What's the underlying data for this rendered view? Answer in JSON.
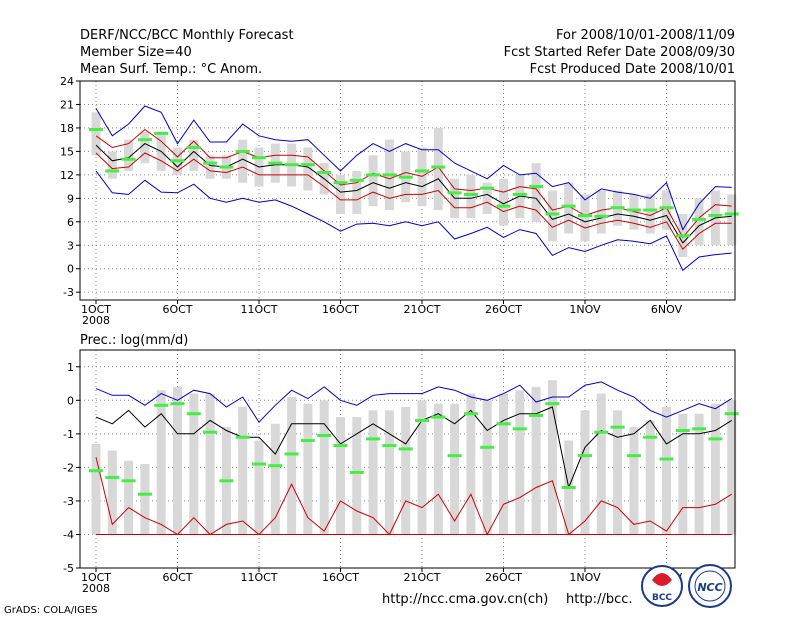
{
  "header": {
    "left": [
      "DERF/NCC/BCC Monthly Forecast",
      "Member Size=40",
      "Mean Surf. Temp.: °C Anom."
    ],
    "right": [
      "For 2008/10/01-2008/11/09",
      "Fcst Started Refer Date 2008/09/30",
      "Fcst Produced Date 2008/10/01"
    ]
  },
  "footer": {
    "grads": "GrADS: COLA/IGES",
    "url1": "http://ncc.cma.gov.cn(ch)",
    "url2": "http://bcc.",
    "logo1": "BCC",
    "logo2": "NCC"
  },
  "colors": {
    "ens": "#d8d8d8",
    "spread": "#0000cc",
    "band": "#cc0000",
    "mean": "#000000",
    "obs": "#44ee44",
    "grid": "#888888"
  },
  "chart_data": [
    {
      "type": "line",
      "title": "Mean Surf. Temp.: °C Anom.",
      "x": [
        1,
        2,
        3,
        4,
        5,
        6,
        7,
        8,
        9,
        10,
        11,
        12,
        13,
        14,
        15,
        16,
        17,
        18,
        19,
        20,
        21,
        22,
        23,
        24,
        25,
        26,
        27,
        28,
        29,
        30,
        31,
        32,
        33,
        34,
        35,
        36,
        37,
        38,
        39,
        40
      ],
      "xticks": [
        {
          "x": 1,
          "label": "1OCT",
          "sub": "2008"
        },
        {
          "x": 6,
          "label": "6OCT"
        },
        {
          "x": 11,
          "label": "11OCT"
        },
        {
          "x": 16,
          "label": "16OCT"
        },
        {
          "x": 21,
          "label": "21OCT"
        },
        {
          "x": 26,
          "label": "26OCT"
        },
        {
          "x": 31,
          "label": "1NOV"
        },
        {
          "x": 36,
          "label": "6NOV"
        }
      ],
      "ylim": [
        -4,
        24
      ],
      "yticks": [
        -3,
        0,
        3,
        6,
        9,
        12,
        15,
        18,
        21,
        24
      ],
      "series": [
        {
          "name": "max",
          "color": "spread",
          "values": [
            20.5,
            17.0,
            18.5,
            20.8,
            20.0,
            16.0,
            19.0,
            16.2,
            16.2,
            18.5,
            17.0,
            16.5,
            16.3,
            16.5,
            14.5,
            12.5,
            14.5,
            16.0,
            15.0,
            16.0,
            15.2,
            15.2,
            13.5,
            12.5,
            11.5,
            13.2,
            12.0,
            12.2,
            10.5,
            11.0,
            8.8,
            10.2,
            9.8,
            9.5,
            9.0,
            11.0,
            5.0,
            8.3,
            10.5,
            10.4
          ]
        },
        {
          "name": "upper",
          "color": "band",
          "values": [
            17.0,
            15.5,
            16.0,
            17.8,
            16.3,
            14.3,
            16.3,
            14.2,
            14.2,
            15.0,
            14.2,
            14.5,
            14.5,
            14.3,
            12.5,
            10.7,
            11.0,
            12.2,
            11.5,
            12.3,
            11.8,
            13.0,
            10.2,
            10.0,
            10.3,
            9.8,
            10.5,
            10.2,
            7.5,
            8.0,
            6.8,
            7.5,
            7.8,
            7.3,
            6.8,
            7.8,
            4.0,
            6.5,
            8.2,
            8.0
          ]
        },
        {
          "name": "mean",
          "color": "mean",
          "values": [
            15.8,
            13.8,
            14.2,
            16.0,
            15.0,
            13.0,
            15.0,
            13.2,
            13.0,
            14.0,
            13.0,
            13.3,
            13.3,
            13.0,
            11.5,
            9.8,
            10.0,
            11.0,
            10.3,
            11.0,
            10.5,
            11.5,
            9.0,
            9.0,
            9.5,
            8.3,
            9.3,
            9.0,
            6.3,
            7.0,
            6.0,
            6.5,
            7.0,
            6.7,
            6.2,
            6.8,
            3.3,
            5.5,
            6.5,
            6.7
          ]
        },
        {
          "name": "lower",
          "color": "band",
          "values": [
            14.8,
            12.8,
            13.0,
            14.8,
            13.8,
            12.5,
            14.0,
            12.5,
            12.3,
            13.0,
            12.0,
            12.0,
            12.0,
            12.0,
            10.5,
            8.8,
            8.8,
            9.8,
            9.0,
            9.5,
            9.5,
            10.0,
            7.8,
            7.8,
            8.5,
            7.3,
            8.0,
            7.5,
            5.3,
            6.2,
            5.2,
            5.8,
            6.2,
            5.8,
            5.3,
            6.0,
            2.5,
            4.5,
            5.8,
            5.8
          ]
        },
        {
          "name": "min",
          "color": "spread",
          "values": [
            12.5,
            9.7,
            9.5,
            11.3,
            9.8,
            9.7,
            10.8,
            9.0,
            8.5,
            9.0,
            8.5,
            8.8,
            8.0,
            7.0,
            6.0,
            4.8,
            5.7,
            5.8,
            5.5,
            6.0,
            5.5,
            6.0,
            3.8,
            4.5,
            5.3,
            4.0,
            5.0,
            4.5,
            1.7,
            2.7,
            2.2,
            3.0,
            3.7,
            3.5,
            3.2,
            4.2,
            -0.2,
            1.5,
            1.8,
            2.0
          ]
        }
      ],
      "obs": [
        17.8,
        12.5,
        14.0,
        16.5,
        17.3,
        13.8,
        15.5,
        13.5,
        13.0,
        15.0,
        14.2,
        13.5,
        13.3,
        13.3,
        12.3,
        11.0,
        11.3,
        12.0,
        12.0,
        11.7,
        12.5,
        13.0,
        9.7,
        9.5,
        10.3,
        8.0,
        9.5,
        10.5,
        7.0,
        8.0,
        6.8,
        6.7,
        7.8,
        7.5,
        7.5,
        7.8,
        4.2,
        6.3,
        6.8,
        7.0
      ],
      "ens_bars": [
        [
          14.5,
          20.0
        ],
        [
          11.5,
          15.0
        ],
        [
          12.5,
          16.5
        ],
        [
          13.5,
          17.5
        ],
        [
          12.5,
          17.5
        ],
        [
          12.0,
          15.5
        ],
        [
          12.5,
          16.5
        ],
        [
          11.5,
          14.5
        ],
        [
          11.5,
          14.5
        ],
        [
          11.0,
          16.5
        ],
        [
          10.5,
          15.5
        ],
        [
          11.0,
          16.0
        ],
        [
          10.5,
          16.0
        ],
        [
          10.0,
          15.5
        ],
        [
          9.5,
          13.5
        ],
        [
          7.0,
          12.0
        ],
        [
          7.0,
          12.5
        ],
        [
          8.0,
          14.5
        ],
        [
          7.5,
          16.5
        ],
        [
          8.5,
          15.0
        ],
        [
          8.0,
          15.5
        ],
        [
          7.5,
          18.0
        ],
        [
          6.5,
          11.5
        ],
        [
          6.5,
          12.0
        ],
        [
          7.0,
          11.0
        ],
        [
          5.5,
          11.5
        ],
        [
          6.5,
          12.0
        ],
        [
          6.0,
          13.5
        ],
        [
          3.5,
          10.0
        ],
        [
          4.5,
          11.0
        ],
        [
          3.5,
          9.5
        ],
        [
          4.5,
          10.0
        ],
        [
          5.5,
          10.0
        ],
        [
          5.0,
          9.5
        ],
        [
          4.5,
          9.5
        ],
        [
          5.0,
          10.0
        ],
        [
          1.5,
          7.0
        ],
        [
          3.0,
          9.0
        ],
        [
          3.0,
          10.0
        ],
        [
          3.0,
          9.5
        ]
      ]
    },
    {
      "type": "line",
      "title": "Prec.: log(mm/d)",
      "x": [
        1,
        2,
        3,
        4,
        5,
        6,
        7,
        8,
        9,
        10,
        11,
        12,
        13,
        14,
        15,
        16,
        17,
        18,
        19,
        20,
        21,
        22,
        23,
        24,
        25,
        26,
        27,
        28,
        29,
        30,
        31,
        32,
        33,
        34,
        35,
        36,
        37,
        38,
        39,
        40
      ],
      "xticks": [
        {
          "x": 1,
          "label": "1OCT",
          "sub": "2008"
        },
        {
          "x": 6,
          "label": "6OCT"
        },
        {
          "x": 11,
          "label": "11OCT"
        },
        {
          "x": 16,
          "label": "16OCT"
        },
        {
          "x": 21,
          "label": "21OCT"
        },
        {
          "x": 26,
          "label": "26OCT"
        },
        {
          "x": 31,
          "label": "1NOV"
        },
        {
          "x": 36,
          "label": "6NOV"
        }
      ],
      "ylim": [
        -5,
        1.5
      ],
      "yticks": [
        -5,
        -4,
        -3,
        -2,
        -1,
        0,
        1
      ],
      "series": [
        {
          "name": "max",
          "color": "spread",
          "values": [
            0.35,
            0.15,
            0.15,
            -0.15,
            0.2,
            0.0,
            0.3,
            0.2,
            -0.2,
            0.1,
            -0.65,
            -0.15,
            0.3,
            0.05,
            0.4,
            0.0,
            -0.15,
            0.15,
            0.2,
            0.2,
            0.2,
            0.4,
            0.3,
            0.1,
            0.0,
            0.2,
            0.45,
            -0.05,
            0.1,
            0.1,
            0.45,
            0.55,
            0.3,
            0.1,
            -0.3,
            -0.5,
            -0.3,
            -0.1,
            -0.25,
            0.05
          ]
        },
        {
          "name": "mean",
          "color": "mean",
          "values": [
            -0.5,
            -0.7,
            -0.3,
            -0.8,
            -0.4,
            -1.0,
            -1.0,
            -0.6,
            -0.9,
            -1.1,
            -1.1,
            -1.6,
            -0.7,
            -0.7,
            -0.7,
            -1.3,
            -1.0,
            -0.7,
            -1.0,
            -1.3,
            -0.6,
            -0.4,
            -0.7,
            -0.3,
            -0.9,
            -0.6,
            -0.4,
            -0.4,
            -0.2,
            -2.6,
            -1.4,
            -0.9,
            -1.1,
            -1.0,
            -0.6,
            -1.3,
            -1.0,
            -1.0,
            -0.9,
            -0.6
          ]
        },
        {
          "name": "lower",
          "color": "band",
          "values": [
            -1.7,
            -3.7,
            -3.2,
            -3.5,
            -3.7,
            -4.0,
            -3.5,
            -4.0,
            -3.7,
            -3.6,
            -4.0,
            -3.5,
            -2.5,
            -3.5,
            -3.9,
            -3.0,
            -3.3,
            -3.5,
            -4.0,
            -3.0,
            -3.2,
            -2.8,
            -3.6,
            -2.8,
            -4.0,
            -3.1,
            -2.9,
            -2.6,
            -2.4,
            -4.0,
            -3.6,
            -3.0,
            -3.2,
            -3.7,
            -3.6,
            -3.9,
            -3.2,
            -3.2,
            -3.1,
            -2.8
          ]
        },
        {
          "name": "floor",
          "color": "band",
          "values": [
            -4,
            -4,
            -4,
            -4,
            -4,
            -4,
            -4,
            -4,
            -4,
            -4,
            -4,
            -4,
            -4,
            -4,
            -4,
            -4,
            -4,
            -4,
            -4,
            -4,
            -4,
            -4,
            -4,
            -4,
            -4,
            -4,
            -4,
            -4,
            -4,
            -4,
            -4,
            -4,
            -4,
            -4,
            -4,
            -4,
            -4,
            -4,
            -4,
            -4
          ]
        }
      ],
      "obs": [
        -2.1,
        -2.3,
        -2.4,
        -2.8,
        -0.15,
        -0.1,
        -0.4,
        -0.95,
        -2.4,
        -1.1,
        -1.9,
        -1.95,
        -1.6,
        -1.2,
        -1.05,
        -1.35,
        -2.15,
        -1.15,
        -1.35,
        -1.45,
        -0.6,
        -0.5,
        -1.65,
        -0.4,
        -1.4,
        -0.7,
        -0.85,
        -0.45,
        -0.1,
        -2.6,
        -1.65,
        -0.95,
        -0.8,
        -1.65,
        -1.1,
        -1.75,
        -0.9,
        -0.85,
        -1.15,
        -0.4
      ],
      "ens_bars": [
        [
          -4.0,
          -1.3
        ],
        [
          -4.0,
          -1.5
        ],
        [
          -4.0,
          -1.8
        ],
        [
          -4.0,
          -1.9
        ],
        [
          -4.0,
          0.3
        ],
        [
          -4.0,
          0.4
        ],
        [
          -4.0,
          0.2
        ],
        [
          -4.0,
          0.2
        ],
        [
          -4.0,
          -0.8
        ],
        [
          -4.0,
          -0.2
        ],
        [
          -4.0,
          -1.2
        ],
        [
          -4.0,
          -0.7
        ],
        [
          -4.0,
          0.1
        ],
        [
          -4.0,
          -0.1
        ],
        [
          -4.0,
          0.0
        ],
        [
          -4.0,
          -0.5
        ],
        [
          -4.0,
          -0.5
        ],
        [
          -4.0,
          -0.3
        ],
        [
          -4.0,
          -0.3
        ],
        [
          -4.0,
          -0.2
        ],
        [
          -4.0,
          0.0
        ],
        [
          -4.0,
          -0.1
        ],
        [
          -4.0,
          -0.1
        ],
        [
          -4.0,
          0.2
        ],
        [
          -4.0,
          0.0
        ],
        [
          -4.0,
          0.2
        ],
        [
          -4.0,
          0.3
        ],
        [
          -4.0,
          0.4
        ],
        [
          -4.0,
          0.6
        ],
        [
          -4.0,
          -1.2
        ],
        [
          -4.0,
          -0.3
        ],
        [
          -4.0,
          0.2
        ],
        [
          -4.0,
          -0.3
        ],
        [
          -4.0,
          -0.8
        ],
        [
          -4.0,
          -0.6
        ],
        [
          -4.0,
          -0.2
        ],
        [
          -4.0,
          -0.4
        ],
        [
          -4.0,
          -0.4
        ],
        [
          -4.0,
          -0.1
        ],
        [
          -4.0,
          0.0
        ]
      ]
    }
  ]
}
